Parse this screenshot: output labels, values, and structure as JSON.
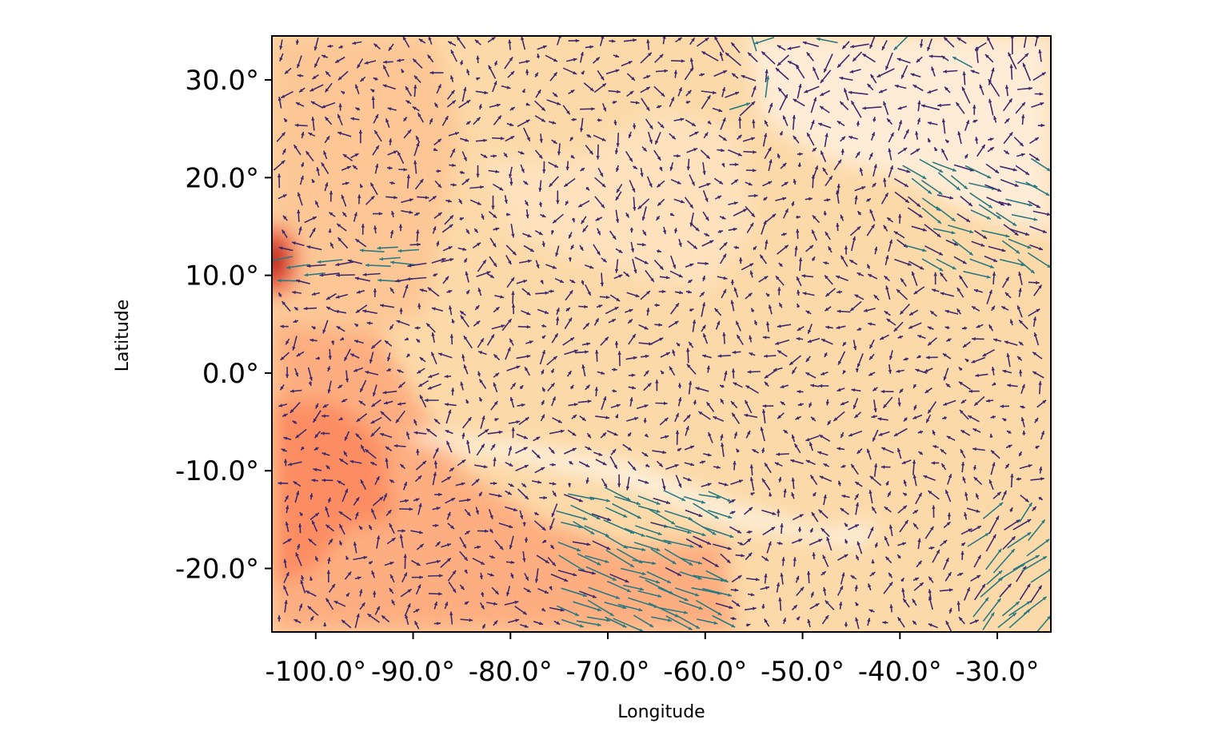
{
  "chart_data": {
    "type": "quiver",
    "title": "",
    "xlabel": "Longitude",
    "ylabel": "Latitude",
    "xlim": [
      -104.5,
      -24.5
    ],
    "ylim": [
      -26.5,
      34.5
    ],
    "xticks": [
      -100,
      -90,
      -80,
      -70,
      -60,
      -50,
      -40,
      -30
    ],
    "yticks": [
      -20,
      -10,
      0,
      10,
      20,
      30
    ],
    "xtick_labels": [
      "-100.0°",
      "-90.0°",
      "-80.0°",
      "-70.0°",
      "-60.0°",
      "-50.0°",
      "-40.0°",
      "-30.0°"
    ],
    "ytick_labels": [
      "-20.0°",
      "-10.0°",
      "0.0°",
      "10.0°",
      "20.0°",
      "30.0°"
    ],
    "grid": false,
    "background_field": {
      "colormap": "OrRd",
      "base_color": "#fcd9a8",
      "regions": [
        {
          "name": "warm-west-south",
          "color": "#fdae80",
          "polygon": [
            [
              -104.5,
              -26.5
            ],
            [
              -104.5,
              5
            ],
            [
              -94,
              5
            ],
            [
              -90,
              -2
            ],
            [
              -85,
              -10
            ],
            [
              -77,
              -15
            ],
            [
              -68,
              -18
            ],
            [
              -58,
              -17
            ],
            [
              -57,
              -26.5
            ]
          ]
        },
        {
          "name": "hot-south-west",
          "color": "#fc8d62",
          "polygon": [
            [
              -104.5,
              -22
            ],
            [
              -104.5,
              -3
            ],
            [
              -98,
              -3
            ],
            [
              -93,
              -7
            ],
            [
              -92,
              -15
            ],
            [
              -97,
              -16
            ],
            [
              -100,
              -20
            ]
          ]
        },
        {
          "name": "moderate-plain",
          "color": "#fcc795",
          "polygon": [
            [
              -104.5,
              5
            ],
            [
              -104.5,
              34.5
            ],
            [
              -88,
              34.5
            ],
            [
              -85,
              25
            ],
            [
              -87,
              15
            ],
            [
              -89,
              6
            ],
            [
              -94,
              4
            ]
          ]
        },
        {
          "name": "pale-east",
          "color": "#feecd6",
          "polygon": [
            [
              -56,
              34.5
            ],
            [
              -24.5,
              34.5
            ],
            [
              -24.5,
              14
            ],
            [
              -32,
              16
            ],
            [
              -40,
              20
            ],
            [
              -48,
              22
            ],
            [
              -54,
              26
            ]
          ]
        },
        {
          "name": "pale-canyon",
          "color": "#fdf0dc",
          "polygon": [
            [
              -90,
              -6
            ],
            [
              -80,
              -7
            ],
            [
              -68,
              -9
            ],
            [
              -58,
              -13
            ],
            [
              -48,
              -16
            ],
            [
              -42,
              -15
            ],
            [
              -44,
              -18
            ],
            [
              -58,
              -15.5
            ],
            [
              -70,
              -11
            ],
            [
              -82,
              -8.5
            ],
            [
              -90,
              -7
            ]
          ]
        },
        {
          "name": "light-middle",
          "color": "#fde2bd",
          "polygon": [
            [
              -83,
              22
            ],
            [
              -73,
              22
            ],
            [
              -65,
              27
            ],
            [
              -57,
              25
            ],
            [
              -55,
              15
            ],
            [
              -60,
              8
            ],
            [
              -67,
              10
            ],
            [
              -74,
              12
            ],
            [
              -80,
              14
            ]
          ]
        }
      ],
      "hot_spot": {
        "lon": -104.2,
        "lat": 11.5,
        "color": "#b30000"
      }
    },
    "arrow_colors": {
      "slow": "#3d2a6e",
      "fast": "#2a7a82"
    }
  }
}
